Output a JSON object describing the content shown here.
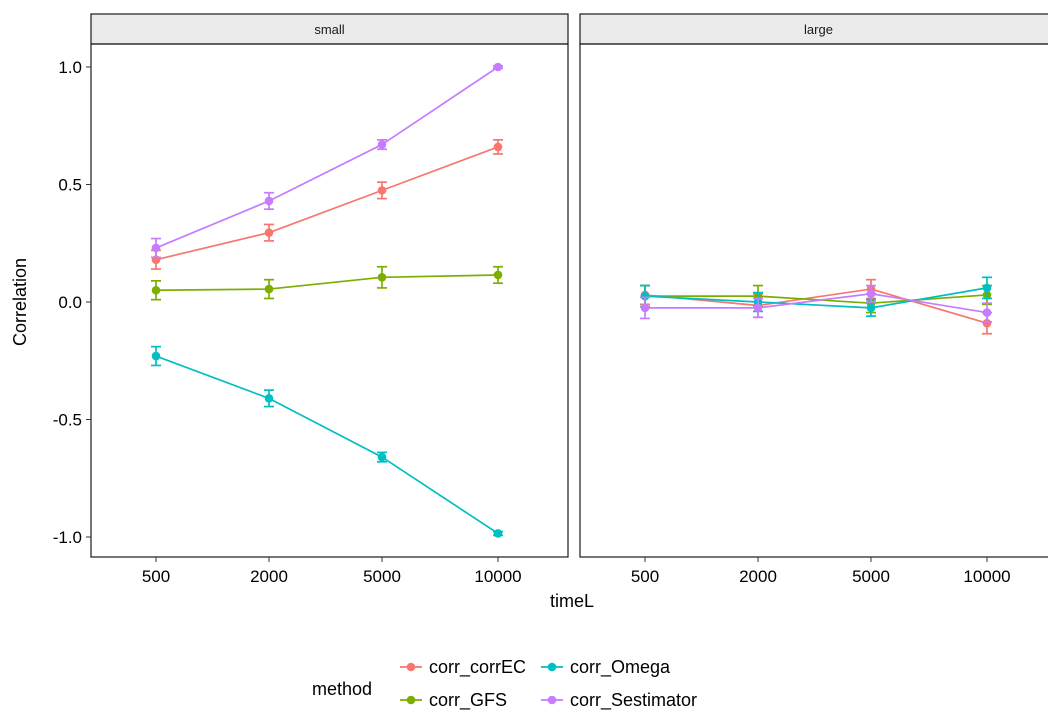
{
  "chart_data": {
    "type": "line",
    "ylabel": "Correlation",
    "xlabel": "timeL",
    "categories": [
      "500",
      "2000",
      "5000",
      "10000"
    ],
    "ylim": [
      -1.1,
      1.1
    ],
    "yticks": [
      1.0,
      0.5,
      0.0,
      -0.5,
      -1.0
    ],
    "ytick_labels": [
      "1.0",
      "0.5",
      "0.0",
      "-0.5",
      "-1.0"
    ],
    "grid": false,
    "legend": {
      "title": "method",
      "position": "bottom",
      "ncol": 2
    },
    "panels": [
      {
        "strip": "small",
        "series": [
          {
            "name": "corr_corrEC",
            "color": "#F8766D",
            "values": [
              0.18,
              0.295,
              0.475,
              0.66
            ],
            "err": [
              0.04,
              0.035,
              0.035,
              0.03
            ]
          },
          {
            "name": "corr_GFS",
            "color": "#7CAE00",
            "values": [
              0.05,
              0.055,
              0.105,
              0.115
            ],
            "err": [
              0.04,
              0.04,
              0.045,
              0.035
            ]
          },
          {
            "name": "corr_Omega",
            "color": "#00BFC4",
            "values": [
              -0.23,
              -0.41,
              -0.66,
              -0.985
            ],
            "err": [
              0.04,
              0.035,
              0.02,
              0.008
            ]
          },
          {
            "name": "corr_Sestimator",
            "color": "#C77CFF",
            "values": [
              0.23,
              0.43,
              0.67,
              1.0
            ],
            "err": [
              0.04,
              0.035,
              0.02,
              0.005
            ]
          }
        ]
      },
      {
        "strip": "large",
        "series": [
          {
            "name": "corr_corrEC",
            "color": "#F8766D",
            "values": [
              0.03,
              -0.015,
              0.055,
              -0.09
            ],
            "err": [
              0.04,
              0.05,
              0.04,
              0.045
            ]
          },
          {
            "name": "corr_GFS",
            "color": "#7CAE00",
            "values": [
              0.025,
              0.025,
              -0.005,
              0.03
            ],
            "err": [
              0.045,
              0.045,
              0.04,
              0.04
            ]
          },
          {
            "name": "corr_Omega",
            "color": "#00BFC4",
            "values": [
              0.025,
              0.0,
              -0.025,
              0.06
            ],
            "err": [
              0.045,
              0.04,
              0.035,
              0.045
            ]
          },
          {
            "name": "corr_Sestimator",
            "color": "#C77CFF",
            "values": [
              -0.025,
              -0.025,
              0.035,
              -0.045
            ],
            "err": [
              0.045,
              0.04,
              0.035,
              0.04
            ]
          }
        ]
      }
    ]
  }
}
